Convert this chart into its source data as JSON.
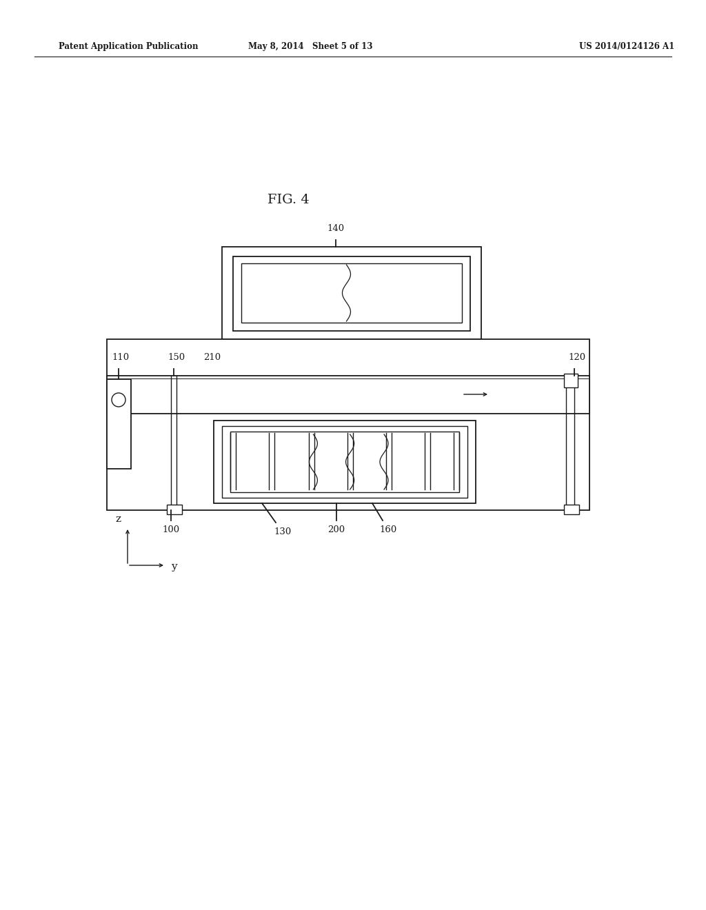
{
  "bg_color": "#ffffff",
  "line_color": "#1a1a1a",
  "header_left": "Patent Application Publication",
  "header_mid": "May 8, 2014   Sheet 5 of 13",
  "header_right": "US 2014/0124126 A1",
  "fig_label": "FIG. 4"
}
